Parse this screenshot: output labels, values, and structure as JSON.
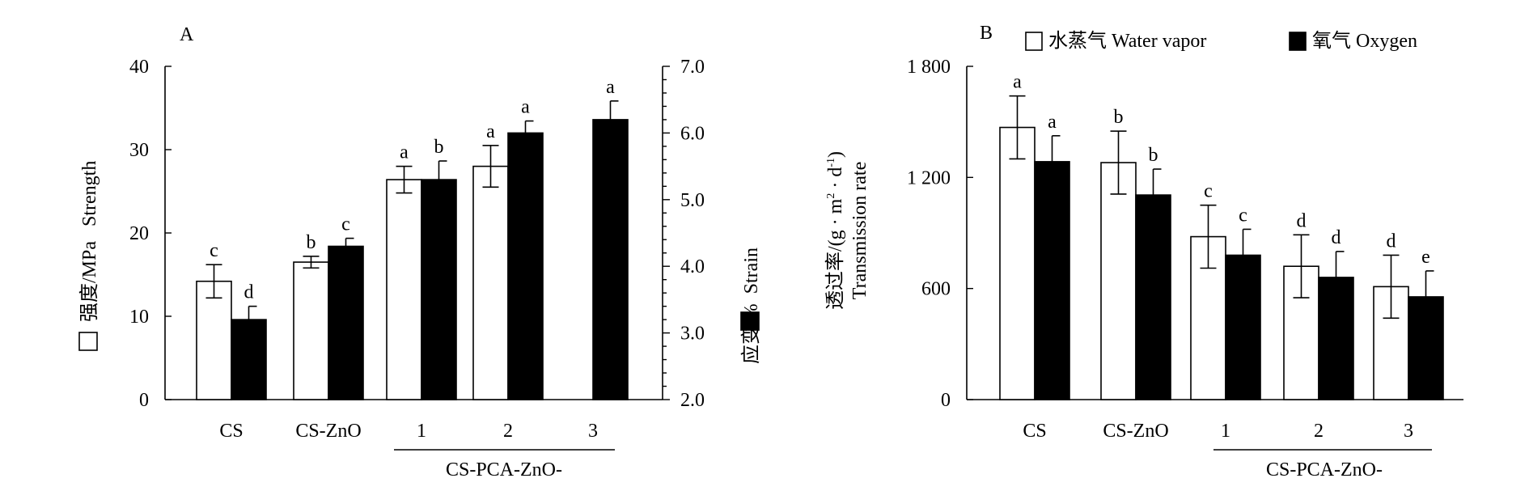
{
  "chart_data": [
    {
      "panel_label": "A",
      "type": "bar",
      "categories": [
        "CS",
        "CS-ZnO",
        "1",
        "2",
        "3"
      ],
      "group_label": "CS-PCA-ZnO-",
      "left_axis": {
        "label": "强度/MPa   Strength",
        "range": [
          0,
          40
        ],
        "ticks": [
          "0",
          "10",
          "20",
          "30",
          "40"
        ]
      },
      "right_axis": {
        "label": "应变/%  Strain",
        "range": [
          2.0,
          7.0
        ],
        "ticks": [
          "2.0",
          "3.0",
          "4.0",
          "5.0",
          "6.0",
          "7.0"
        ]
      },
      "series": [
        {
          "axis": "left",
          "fill": "white",
          "values": [
            14.2,
            16.5,
            26.4,
            28.0,
            null
          ],
          "errors": [
            2.0,
            0.7,
            1.6,
            2.5,
            null
          ],
          "letters": [
            "c",
            "b",
            "a",
            "a",
            ""
          ]
        },
        {
          "axis": "right",
          "fill": "black",
          "values": [
            3.2,
            4.3,
            5.3,
            6.0,
            6.2
          ],
          "errors": [
            0.2,
            0.12,
            0.28,
            0.18,
            0.28
          ],
          "letters": [
            "d",
            "c",
            "b",
            "a",
            "a"
          ]
        }
      ]
    },
    {
      "panel_label": "B",
      "type": "bar",
      "categories": [
        "CS",
        "CS-ZnO",
        "1",
        "2",
        "3"
      ],
      "group_label": "CS-PCA-ZnO-",
      "y_axis": {
        "label_line1": "透过率/(g · m",
        "label_sup1": "2",
        "label_mid": " · d",
        "label_sup2": "-1",
        "label_end": ")",
        "label_line2": "Transmission rate",
        "range": [
          0,
          1800
        ],
        "ticks": [
          "0",
          "600",
          "1 200",
          "1 800"
        ]
      },
      "legend": [
        {
          "label": "水蒸气 Water vapor",
          "fill": "white"
        },
        {
          "label": "氧气 Oxygen",
          "fill": "black"
        }
      ],
      "series": [
        {
          "name": "水蒸气 Water vapor",
          "fill": "white",
          "values": [
            1470,
            1280,
            880,
            720,
            610
          ],
          "errors": [
            170,
            170,
            170,
            170,
            170
          ],
          "letters": [
            "a",
            "b",
            "c",
            "d",
            "d"
          ]
        },
        {
          "name": "氧气 Oxygen",
          "fill": "black",
          "values": [
            1285,
            1105,
            780,
            660,
            555
          ],
          "errors": [
            140,
            140,
            140,
            140,
            140
          ],
          "letters": [
            "a",
            "b",
            "c",
            "d",
            "e"
          ]
        }
      ]
    }
  ]
}
